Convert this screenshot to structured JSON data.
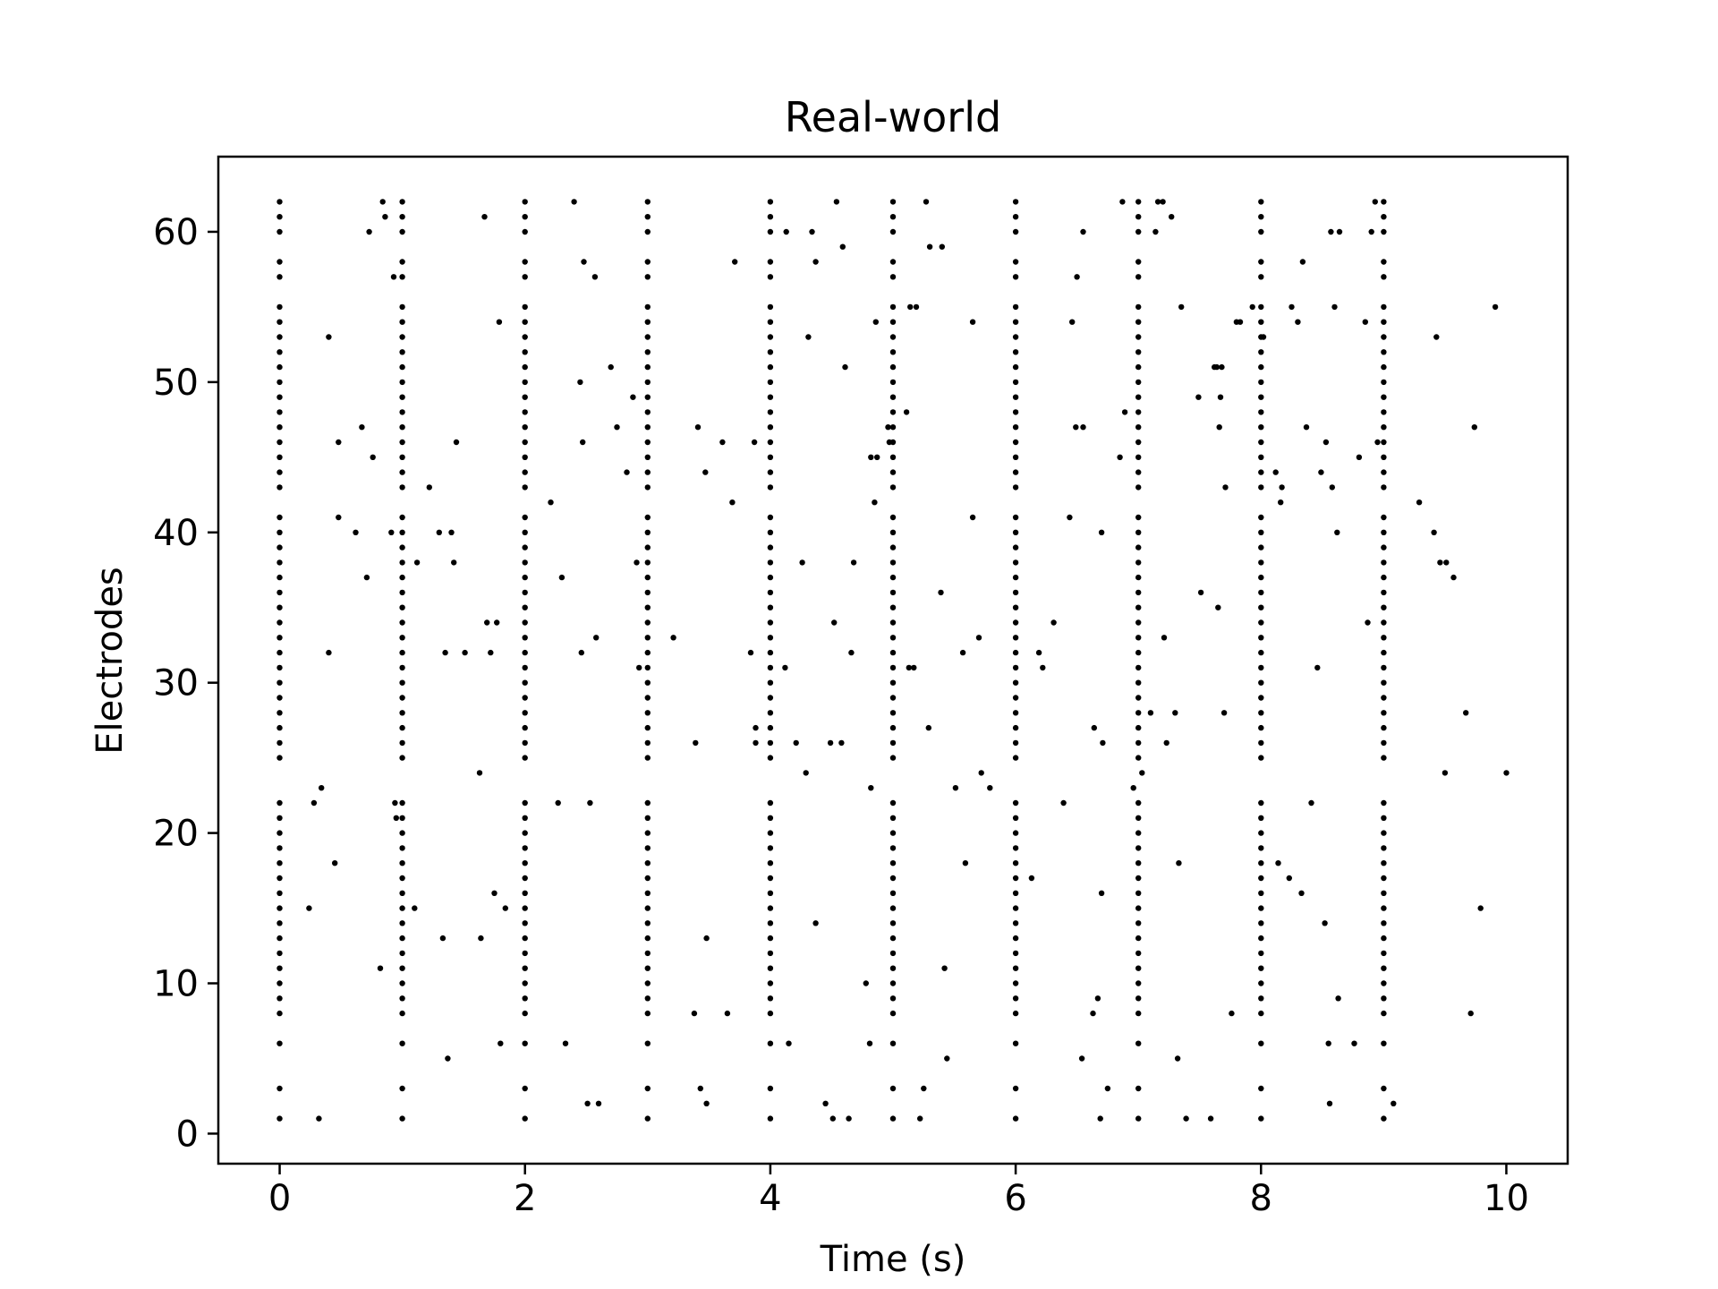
{
  "chart_data": {
    "type": "scatter",
    "title": "Real-world",
    "xlabel": "Time (s)",
    "ylabel": "Electrodes",
    "xlim": [
      -0.5,
      10.5
    ],
    "ylim": [
      -2,
      65
    ],
    "xticks": [
      0,
      2,
      4,
      6,
      8,
      10
    ],
    "yticks": [
      0,
      10,
      20,
      30,
      40,
      50,
      60
    ],
    "grid": false,
    "marker_color": "#000000",
    "burst_times": [
      0,
      1,
      2,
      3,
      4,
      5,
      6,
      7,
      8,
      9
    ],
    "burst_electrodes": [
      1,
      3,
      6,
      8,
      9,
      10,
      11,
      12,
      13,
      14,
      15,
      16,
      17,
      18,
      19,
      20,
      21,
      22,
      25,
      26,
      27,
      28,
      29,
      30,
      31,
      32,
      33,
      34,
      35,
      36,
      37,
      38,
      39,
      40,
      41,
      43,
      44,
      45,
      46,
      47,
      48,
      49,
      50,
      51,
      52,
      53,
      54,
      55,
      57,
      58,
      60,
      61,
      62
    ],
    "scattered_spikes": [
      [
        0.32,
        1
      ],
      [
        0.24,
        15
      ],
      [
        0.28,
        22
      ],
      [
        0.34,
        23
      ],
      [
        0.4,
        32
      ],
      [
        0.4,
        53
      ],
      [
        0.45,
        18
      ],
      [
        0.48,
        46
      ],
      [
        0.48,
        41
      ],
      [
        0.62,
        40
      ],
      [
        0.67,
        47
      ],
      [
        0.71,
        37
      ],
      [
        0.73,
        60
      ],
      [
        0.76,
        45
      ],
      [
        0.82,
        11
      ],
      [
        0.84,
        62
      ],
      [
        0.86,
        61
      ],
      [
        0.91,
        40
      ],
      [
        0.93,
        57
      ],
      [
        0.94,
        22
      ],
      [
        0.95,
        21
      ],
      [
        1.1,
        15
      ],
      [
        1.12,
        38
      ],
      [
        1.22,
        43
      ],
      [
        1.3,
        40
      ],
      [
        1.33,
        13
      ],
      [
        1.35,
        32
      ],
      [
        1.37,
        5
      ],
      [
        1.4,
        40
      ],
      [
        1.42,
        38
      ],
      [
        1.44,
        46
      ],
      [
        1.51,
        32
      ],
      [
        1.63,
        24
      ],
      [
        1.64,
        13
      ],
      [
        1.67,
        61
      ],
      [
        1.69,
        34
      ],
      [
        1.72,
        32
      ],
      [
        1.75,
        16
      ],
      [
        1.77,
        34
      ],
      [
        1.79,
        54
      ],
      [
        1.8,
        6
      ],
      [
        1.84,
        15
      ],
      [
        2.21,
        42
      ],
      [
        2.27,
        22
      ],
      [
        2.3,
        37
      ],
      [
        2.33,
        6
      ],
      [
        2.4,
        62
      ],
      [
        2.45,
        50
      ],
      [
        2.46,
        32
      ],
      [
        2.47,
        46
      ],
      [
        2.48,
        58
      ],
      [
        2.51,
        2
      ],
      [
        2.53,
        22
      ],
      [
        2.57,
        57
      ],
      [
        2.58,
        33
      ],
      [
        2.6,
        2
      ],
      [
        2.7,
        51
      ],
      [
        2.75,
        47
      ],
      [
        2.83,
        44
      ],
      [
        2.88,
        49
      ],
      [
        2.91,
        38
      ],
      [
        2.93,
        31
      ],
      [
        3.21,
        33
      ],
      [
        3.38,
        8
      ],
      [
        3.39,
        26
      ],
      [
        3.41,
        47
      ],
      [
        3.43,
        3
      ],
      [
        3.47,
        44
      ],
      [
        3.48,
        2
      ],
      [
        3.48,
        13
      ],
      [
        3.61,
        46
      ],
      [
        3.65,
        8
      ],
      [
        3.69,
        42
      ],
      [
        3.71,
        58
      ],
      [
        3.84,
        32
      ],
      [
        3.87,
        46
      ],
      [
        3.88,
        26
      ],
      [
        3.88,
        27
      ],
      [
        4.12,
        31
      ],
      [
        4.13,
        60
      ],
      [
        4.15,
        6
      ],
      [
        4.21,
        26
      ],
      [
        4.26,
        38
      ],
      [
        4.29,
        24
      ],
      [
        4.31,
        53
      ],
      [
        4.34,
        60
      ],
      [
        4.37,
        14
      ],
      [
        4.37,
        58
      ],
      [
        4.45,
        2
      ],
      [
        4.49,
        26
      ],
      [
        4.51,
        1
      ],
      [
        4.52,
        34
      ],
      [
        4.54,
        62
      ],
      [
        4.58,
        26
      ],
      [
        4.59,
        59
      ],
      [
        4.61,
        51
      ],
      [
        4.64,
        1
      ],
      [
        4.66,
        32
      ],
      [
        4.68,
        38
      ],
      [
        4.78,
        10
      ],
      [
        4.81,
        6
      ],
      [
        4.82,
        23
      ],
      [
        4.82,
        45
      ],
      [
        4.85,
        42
      ],
      [
        4.86,
        54
      ],
      [
        4.87,
        45
      ],
      [
        4.96,
        47
      ],
      [
        4.97,
        46
      ],
      [
        5.11,
        48
      ],
      [
        5.13,
        31
      ],
      [
        5.14,
        55
      ],
      [
        5.17,
        31
      ],
      [
        5.19,
        55
      ],
      [
        5.22,
        1
      ],
      [
        5.25,
        3
      ],
      [
        5.27,
        62
      ],
      [
        5.29,
        27
      ],
      [
        5.3,
        59
      ],
      [
        5.39,
        36
      ],
      [
        5.4,
        59
      ],
      [
        5.42,
        11
      ],
      [
        5.44,
        5
      ],
      [
        5.51,
        23
      ],
      [
        5.57,
        32
      ],
      [
        5.59,
        18
      ],
      [
        5.65,
        54
      ],
      [
        5.65,
        41
      ],
      [
        5.7,
        33
      ],
      [
        5.72,
        24
      ],
      [
        5.79,
        23
      ],
      [
        6.13,
        17
      ],
      [
        6.19,
        32
      ],
      [
        6.22,
        31
      ],
      [
        6.31,
        34
      ],
      [
        6.39,
        22
      ],
      [
        6.44,
        41
      ],
      [
        6.46,
        54
      ],
      [
        6.49,
        47
      ],
      [
        6.5,
        57
      ],
      [
        6.54,
        5
      ],
      [
        6.55,
        47
      ],
      [
        6.55,
        60
      ],
      [
        6.63,
        8
      ],
      [
        6.64,
        27
      ],
      [
        6.67,
        9
      ],
      [
        6.69,
        1
      ],
      [
        6.7,
        16
      ],
      [
        6.7,
        40
      ],
      [
        6.71,
        26
      ],
      [
        6.75,
        3
      ],
      [
        6.85,
        45
      ],
      [
        6.87,
        62
      ],
      [
        6.89,
        48
      ],
      [
        6.96,
        23
      ],
      [
        7.03,
        24
      ],
      [
        7.1,
        28
      ],
      [
        7.14,
        60
      ],
      [
        7.16,
        62
      ],
      [
        7.2,
        62
      ],
      [
        7.21,
        33
      ],
      [
        7.23,
        26
      ],
      [
        7.27,
        61
      ],
      [
        7.3,
        28
      ],
      [
        7.32,
        5
      ],
      [
        7.33,
        18
      ],
      [
        7.35,
        55
      ],
      [
        7.39,
        1
      ],
      [
        7.49,
        49
      ],
      [
        7.51,
        36
      ],
      [
        7.59,
        1
      ],
      [
        7.62,
        51
      ],
      [
        7.64,
        51
      ],
      [
        7.65,
        35
      ],
      [
        7.66,
        47
      ],
      [
        7.67,
        49
      ],
      [
        7.68,
        51
      ],
      [
        7.7,
        28
      ],
      [
        7.71,
        43
      ],
      [
        7.76,
        8
      ],
      [
        7.8,
        54
      ],
      [
        7.83,
        54
      ],
      [
        7.93,
        55
      ],
      [
        8.02,
        53
      ],
      [
        8.12,
        44
      ],
      [
        8.14,
        18
      ],
      [
        8.16,
        42
      ],
      [
        8.17,
        43
      ],
      [
        8.23,
        17
      ],
      [
        8.25,
        55
      ],
      [
        8.3,
        54
      ],
      [
        8.33,
        16
      ],
      [
        8.34,
        58
      ],
      [
        8.37,
        47
      ],
      [
        8.41,
        22
      ],
      [
        8.46,
        31
      ],
      [
        8.49,
        44
      ],
      [
        8.52,
        14
      ],
      [
        8.53,
        46
      ],
      [
        8.55,
        6
      ],
      [
        8.56,
        2
      ],
      [
        8.57,
        60
      ],
      [
        8.58,
        43
      ],
      [
        8.6,
        55
      ],
      [
        8.62,
        40
      ],
      [
        8.63,
        9
      ],
      [
        8.64,
        60
      ],
      [
        8.76,
        6
      ],
      [
        8.8,
        45
      ],
      [
        8.85,
        54
      ],
      [
        8.87,
        34
      ],
      [
        8.9,
        60
      ],
      [
        8.93,
        62
      ],
      [
        8.95,
        46
      ],
      [
        9.08,
        2
      ],
      [
        9.29,
        42
      ],
      [
        9.41,
        40
      ],
      [
        9.43,
        53
      ],
      [
        9.46,
        38
      ],
      [
        9.5,
        24
      ],
      [
        9.51,
        38
      ],
      [
        9.57,
        37
      ],
      [
        9.67,
        28
      ],
      [
        9.71,
        8
      ],
      [
        9.74,
        47
      ],
      [
        9.79,
        15
      ],
      [
        9.91,
        55
      ],
      [
        10.0,
        24
      ]
    ]
  }
}
